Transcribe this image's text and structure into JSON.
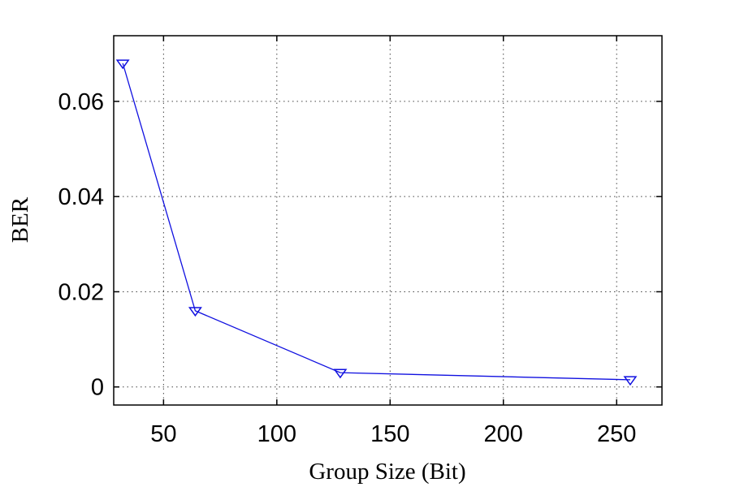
{
  "chart_data": {
    "type": "line",
    "xlabel": "Group Size (Bit)",
    "ylabel": "BER",
    "xlim": [
      28,
      270
    ],
    "ylim": [
      -0.0038,
      0.0738
    ],
    "xticks": [
      50,
      100,
      150,
      200,
      250
    ],
    "yticks": [
      0,
      0.02,
      0.04,
      0.06
    ],
    "xtick_labels": [
      "50",
      "100",
      "150",
      "200",
      "250"
    ],
    "ytick_labels": [
      "0",
      "0.02",
      "0.04",
      "0.06"
    ],
    "grid": true,
    "series": [
      {
        "marker": "triangle-down",
        "color": "#1010e0",
        "x": [
          32,
          64,
          128,
          256
        ],
        "y": [
          0.068,
          0.016,
          0.003,
          0.0015
        ]
      }
    ]
  }
}
